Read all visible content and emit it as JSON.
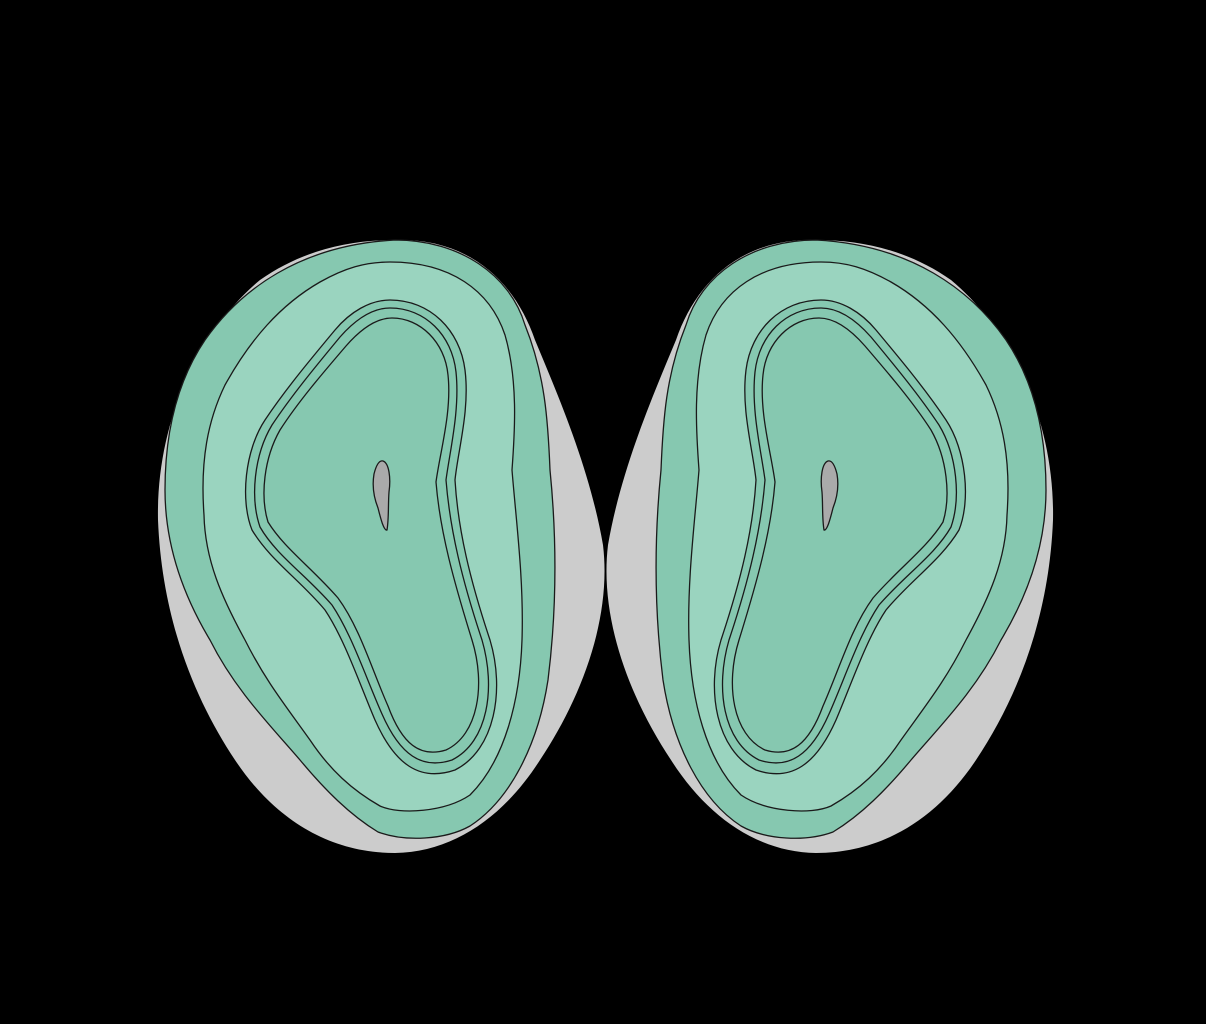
{
  "diagram": {
    "kind": "brain coronal section illustration",
    "background_color": "#000000",
    "colors": {
      "outer_tissue": "#cccccc",
      "layer_dark": "#86c8b0",
      "layer_light": "#9ad4bf",
      "core": "#86c8b0",
      "ventricle": "#aaaaaa",
      "outline": "#1a1a1a"
    },
    "hemispheres": [
      {
        "id": "left-hemisphere",
        "mirrored": false
      },
      {
        "id": "right-hemisphere",
        "mirrored": true
      }
    ],
    "text_labels": []
  }
}
